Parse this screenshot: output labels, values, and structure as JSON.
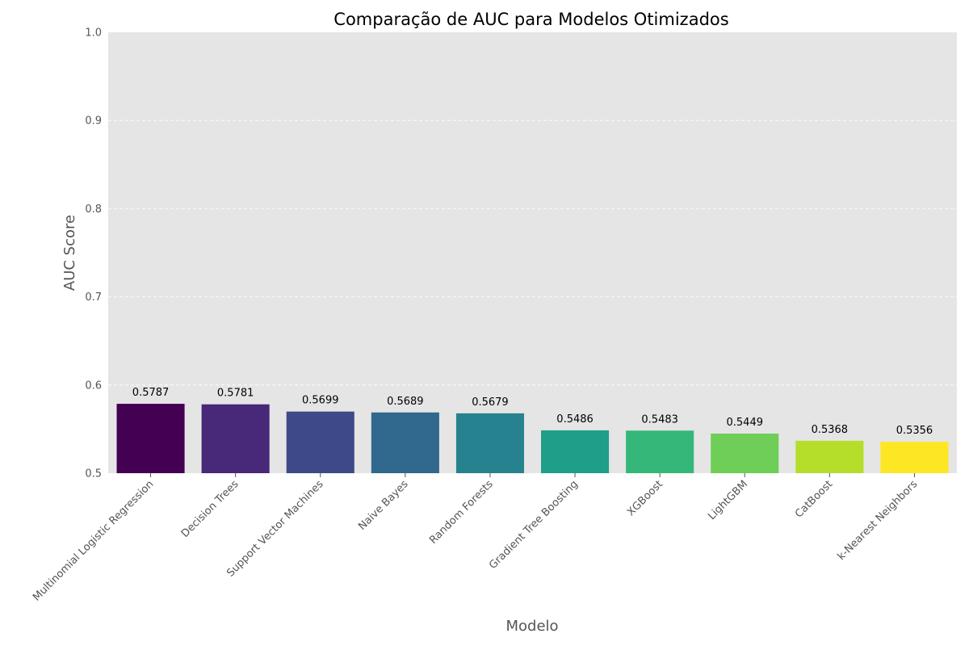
{
  "chart_data": {
    "type": "bar",
    "title": "Comparação de AUC para Modelos Otimizados",
    "xlabel": "Modelo",
    "ylabel": "AUC Score",
    "ylim": [
      0.5,
      1.0
    ],
    "yticks": [
      "0.5",
      "0.6",
      "0.7",
      "0.8",
      "0.9",
      "1.0"
    ],
    "ytick_values": [
      0.5,
      0.6,
      0.7,
      0.8,
      0.9,
      1.0
    ],
    "grid": true,
    "categories": [
      "Multinomial Logistic Regression",
      "Decision Trees",
      "Support Vector Machines",
      "Naive Bayes",
      "Random Forests",
      "Gradient Tree Boosting",
      "XGBoost",
      "LightGBM",
      "CatBoost",
      "k-Nearest Neighbors"
    ],
    "values": [
      0.5787,
      0.5781,
      0.5699,
      0.5689,
      0.5679,
      0.5486,
      0.5483,
      0.5449,
      0.5368,
      0.5356
    ],
    "value_labels": [
      "0.5787",
      "0.5781",
      "0.5699",
      "0.5689",
      "0.5679",
      "0.5486",
      "0.5483",
      "0.5449",
      "0.5368",
      "0.5356"
    ],
    "colors": [
      "#440154",
      "#482878",
      "#3e4989",
      "#31688e",
      "#26828e",
      "#1f9e89",
      "#35b779",
      "#6ece58",
      "#b5de2b",
      "#fde725"
    ],
    "background": "#e5e5e5"
  }
}
